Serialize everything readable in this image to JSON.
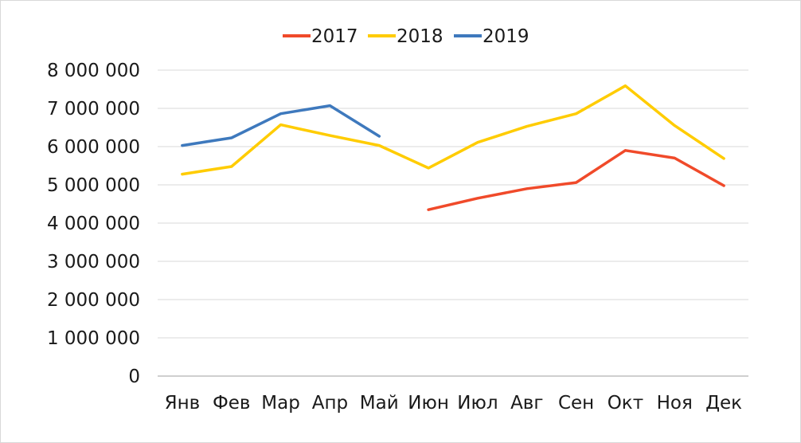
{
  "chart_data": {
    "type": "line",
    "categories": [
      "Янв",
      "Фев",
      "Мар",
      "Апр",
      "Май",
      "Июн",
      "Июл",
      "Авг",
      "Сен",
      "Окт",
      "Ноя",
      "Дек"
    ],
    "y_ticks": [
      "0",
      "1 000 000",
      "2 000 000",
      "3 000 000",
      "4 000 000",
      "5 000 000",
      "6 000 000",
      "7 000 000",
      "8 000 000"
    ],
    "ylim": [
      0,
      8000000
    ],
    "grid": true,
    "legend_position": "top",
    "series": [
      {
        "name": "2017",
        "color": "#f04a2a",
        "values": [
          null,
          null,
          null,
          null,
          null,
          4350000,
          4650000,
          4900000,
          5060000,
          5900000,
          5700000,
          4980000
        ]
      },
      {
        "name": "2018",
        "color": "#ffcc00",
        "values": [
          5280000,
          5480000,
          6570000,
          6290000,
          6030000,
          5440000,
          6110000,
          6530000,
          6860000,
          7590000,
          6550000,
          5690000
        ]
      },
      {
        "name": "2019",
        "color": "#3e79bd",
        "values": [
          6030000,
          6230000,
          6860000,
          7070000,
          6270000,
          null,
          null,
          null,
          null,
          null,
          null,
          null
        ]
      }
    ]
  }
}
